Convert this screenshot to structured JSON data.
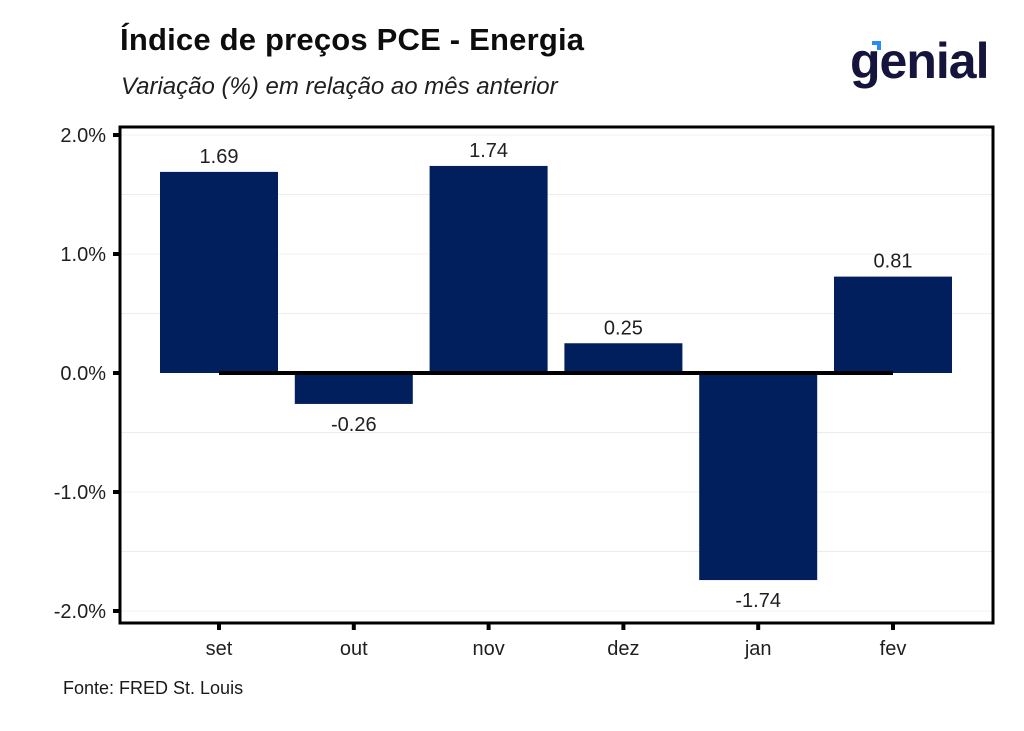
{
  "header": {
    "title": "Índice de preços PCE - Energia",
    "subtitle": "Variação (%) em relação ao mês anterior"
  },
  "logo": {
    "text": "genial",
    "brand_color": "#14143c",
    "accent_color": "#2a8cf0"
  },
  "footer": {
    "source": "Fonte: FRED St. Louis"
  },
  "chart_data": {
    "type": "bar",
    "title": "Índice de preços PCE - Energia",
    "subtitle": "Variação (%) em relação ao mês anterior",
    "xlabel": "",
    "ylabel": "",
    "categories": [
      "set",
      "out",
      "nov",
      "dez",
      "jan",
      "fev"
    ],
    "values": [
      1.69,
      -0.26,
      1.74,
      0.25,
      -1.74,
      0.81
    ],
    "data_labels": [
      "1.69",
      "-0.26",
      "1.74",
      "0.25",
      "-1.74",
      "0.81"
    ],
    "ylim": [
      -2.1,
      2.07
    ],
    "yticks": [
      2.0,
      1.0,
      0.0,
      -1.0,
      -2.0
    ],
    "ytick_labels": [
      "2.0%",
      "1.0%",
      "0.0%",
      "-1.0%",
      "-2.0%"
    ],
    "minor_gridlines": [
      1.5,
      0.5,
      -0.5,
      -1.5
    ],
    "grid": true,
    "legend": "none",
    "bar_color": "#001f5c",
    "zero_line_color": "#000000",
    "source": "Fonte: FRED St. Louis"
  }
}
